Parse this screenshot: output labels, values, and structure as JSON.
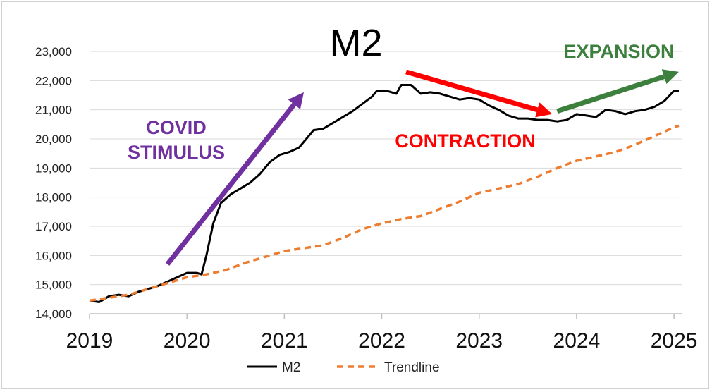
{
  "chart_data": {
    "type": "line",
    "title": "M2",
    "xlabel": "",
    "ylabel": "",
    "xlim": [
      2019.0,
      2025.05
    ],
    "ylim": [
      14000,
      23000
    ],
    "grid": "horizontal",
    "legend_position": "bottom",
    "x_tick_labels": [
      "2019",
      "2020",
      "2021",
      "2022",
      "2023",
      "2024",
      "2025"
    ],
    "x_tick_values": [
      2019,
      2020,
      2021,
      2022,
      2023,
      2024,
      2025
    ],
    "y_tick_labels": [
      "14,000",
      "15,000",
      "16,000",
      "17,000",
      "18,000",
      "19,000",
      "20,000",
      "21,000",
      "22,000",
      "23,000"
    ],
    "y_tick_values": [
      14000,
      15000,
      16000,
      17000,
      18000,
      19000,
      20000,
      21000,
      22000,
      23000
    ],
    "series": [
      {
        "name": "M2",
        "color": "#000000",
        "style": "solid",
        "x": [
          2019.0,
          2019.1,
          2019.2,
          2019.3,
          2019.4,
          2019.5,
          2019.6,
          2019.7,
          2019.8,
          2019.9,
          2020.0,
          2020.1,
          2020.15,
          2020.2,
          2020.27,
          2020.35,
          2020.45,
          2020.55,
          2020.65,
          2020.75,
          2020.85,
          2020.95,
          2021.05,
          2021.15,
          2021.25,
          2021.3,
          2021.4,
          2021.5,
          2021.6,
          2021.7,
          2021.8,
          2021.9,
          2021.95,
          2022.05,
          2022.15,
          2022.2,
          2022.3,
          2022.4,
          2022.5,
          2022.6,
          2022.7,
          2022.8,
          2022.9,
          2023.0,
          2023.1,
          2023.2,
          2023.3,
          2023.4,
          2023.5,
          2023.6,
          2023.7,
          2023.8,
          2023.9,
          2024.0,
          2024.1,
          2024.2,
          2024.3,
          2024.4,
          2024.5,
          2024.6,
          2024.7,
          2024.8,
          2024.9,
          2025.0,
          2025.05
        ],
        "values": [
          14450,
          14400,
          14600,
          14650,
          14600,
          14750,
          14850,
          14950,
          15100,
          15250,
          15400,
          15400,
          15350,
          16000,
          17100,
          17800,
          18100,
          18300,
          18500,
          18800,
          19200,
          19450,
          19550,
          19700,
          20100,
          20300,
          20350,
          20550,
          20750,
          20950,
          21200,
          21450,
          21650,
          21650,
          21550,
          21850,
          21850,
          21550,
          21600,
          21550,
          21450,
          21350,
          21400,
          21350,
          21150,
          21000,
          20800,
          20700,
          20700,
          20650,
          20650,
          20600,
          20650,
          20850,
          20800,
          20750,
          21000,
          20950,
          20850,
          20950,
          21000,
          21100,
          21300,
          21650,
          21650
        ]
      },
      {
        "name": "Trendline",
        "color": "#ed7d31",
        "style": "dashed",
        "x": [
          2019.0,
          2019.2,
          2019.4,
          2019.6,
          2019.8,
          2020.0,
          2020.2,
          2020.4,
          2020.6,
          2020.8,
          2021.0,
          2021.2,
          2021.4,
          2021.6,
          2021.8,
          2022.0,
          2022.2,
          2022.4,
          2022.6,
          2022.8,
          2023.0,
          2023.2,
          2023.4,
          2023.6,
          2023.8,
          2024.0,
          2024.2,
          2024.4,
          2024.6,
          2024.8,
          2025.0,
          2025.05
        ],
        "values": [
          14450,
          14550,
          14650,
          14850,
          15050,
          15250,
          15350,
          15500,
          15750,
          15950,
          16150,
          16250,
          16350,
          16600,
          16900,
          17100,
          17250,
          17350,
          17600,
          17850,
          18150,
          18300,
          18450,
          18700,
          19000,
          19250,
          19400,
          19550,
          19800,
          20100,
          20400,
          20450
        ]
      }
    ],
    "annotations": [
      {
        "text_lines": [
          "COVID",
          "STIMULUS"
        ],
        "color": "#7030a0",
        "arrow": {
          "from": [
            2019.8,
            15700
          ],
          "to": [
            2021.2,
            21600
          ]
        }
      },
      {
        "text_lines": [
          "CONTRACTION"
        ],
        "color": "#ff0000",
        "arrow": {
          "from": [
            2022.25,
            22300
          ],
          "to": [
            2023.75,
            20850
          ]
        }
      },
      {
        "text_lines": [
          "EXPANSION"
        ],
        "color": "#3d7f3d",
        "arrow": {
          "from": [
            2023.8,
            20950
          ],
          "to": [
            2025.05,
            22300
          ]
        }
      }
    ]
  }
}
